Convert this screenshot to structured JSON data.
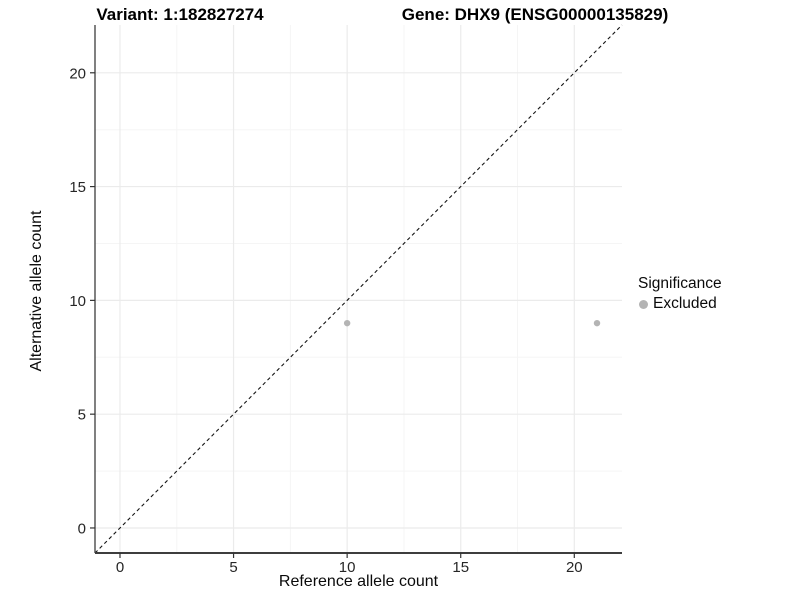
{
  "header": {
    "variant_title": "Variant: 1:182827274",
    "gene_title": "Gene: DHX9 (ENSG00000135829)"
  },
  "chart_data": {
    "type": "scatter",
    "xlabel": "Reference allele count",
    "ylabel": "Alternative allele count",
    "xticks": [
      0,
      5,
      10,
      15,
      20
    ],
    "yticks": [
      0,
      5,
      10,
      15,
      20
    ],
    "xticks_minor": [
      2.5,
      7.5,
      12.5,
      17.5
    ],
    "yticks_minor": [
      2.5,
      7.5,
      12.5,
      17.5
    ],
    "xlim": [
      -1.1,
      22.1
    ],
    "ylim": [
      -1.1,
      22.1
    ],
    "grid": true,
    "identity_line": {
      "slope": 1,
      "intercept": 0,
      "style": "dashed"
    },
    "series": [
      {
        "name": "Excluded",
        "color": "#b4b4b4",
        "points": [
          {
            "x": 10,
            "y": 9
          },
          {
            "x": 21,
            "y": 9
          }
        ]
      }
    ],
    "legend": {
      "title": "Significance",
      "position": "right",
      "entries": [
        {
          "label": "Excluded",
          "color": "#b4b4b4"
        }
      ]
    }
  },
  "colors": {
    "background": "#ffffff",
    "grid_major": "#ebebeb",
    "grid_minor": "#f5f5f5",
    "axis_line": "#3d3d3d",
    "tick_mark": "#333333",
    "tick_text": "#262626",
    "title_text": "#000000",
    "identity_line": "#151515",
    "point": "#b4b4b4"
  }
}
